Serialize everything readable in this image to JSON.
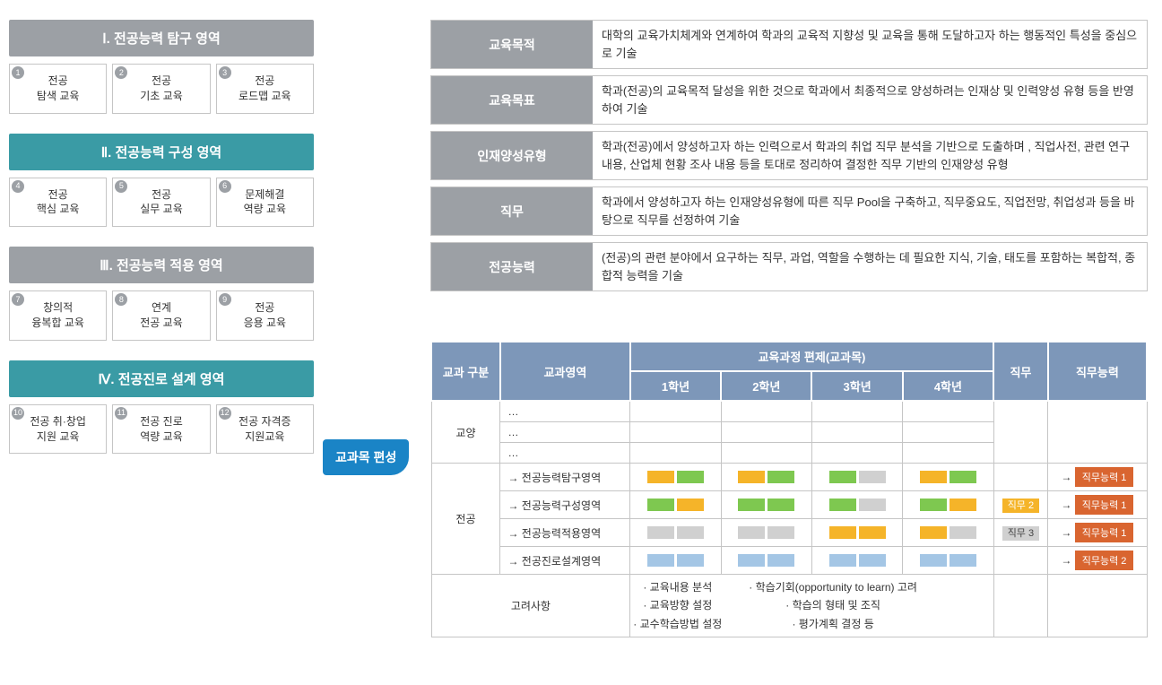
{
  "colors": {
    "header_gray": "#9ca0a5",
    "header_teal": "#3a9ba5",
    "table_header": "#7d97b9",
    "block_yellow": "#f5b429",
    "block_green": "#7ec850",
    "block_gray": "#d0d0d0",
    "block_blue": "#a4c6e5",
    "cap_orange": "#d96530",
    "tag_blue": "#1a84c6"
  },
  "sections": [
    {
      "title": "Ⅰ. 전공능력 탐구 영역",
      "teal": false,
      "cards": [
        {
          "n": "1",
          "t1": "전공",
          "t2": "탐색 교육"
        },
        {
          "n": "2",
          "t1": "전공",
          "t2": "기초 교육"
        },
        {
          "n": "3",
          "t1": "전공",
          "t2": "로드맵 교육"
        }
      ]
    },
    {
      "title": "Ⅱ. 전공능력 구성 영역",
      "teal": true,
      "cards": [
        {
          "n": "4",
          "t1": "전공",
          "t2": "핵심 교육"
        },
        {
          "n": "5",
          "t1": "전공",
          "t2": "실무 교육"
        },
        {
          "n": "6",
          "t1": "문제해결",
          "t2": "역량 교육"
        }
      ]
    },
    {
      "title": "Ⅲ. 전공능력 적용 영역",
      "teal": false,
      "cards": [
        {
          "n": "7",
          "t1": "창의적",
          "t2": "융복합 교육"
        },
        {
          "n": "8",
          "t1": "연계",
          "t2": "전공 교육"
        },
        {
          "n": "9",
          "t1": "전공",
          "t2": "응용 교육"
        }
      ]
    },
    {
      "title": "Ⅳ. 전공진로 설계 영역",
      "teal": true,
      "cards": [
        {
          "n": "10",
          "t1": "전공 취·창업",
          "t2": "지원 교육"
        },
        {
          "n": "11",
          "t1": "전공 진로",
          "t2": "역량 교육"
        },
        {
          "n": "12",
          "t1": "전공 자격증",
          "t2": "지원교육"
        }
      ]
    }
  ],
  "connector": "교과목 편성",
  "definitions": [
    {
      "label": "교육목적",
      "desc": "대학의 교육가치체계와 연계하여 학과의 교육적 지향성 및 교육을 통해 도달하고자 하는 행동적인 특성을 중심으로 기술"
    },
    {
      "label": "교육목표",
      "desc": "학과(전공)의 교육목적 달성을 위한 것으로 학과에서 최종적으로 양성하려는 인재상 및 인력양성 유형 등을 반영하여 기술"
    },
    {
      "label": "인재양성유형",
      "desc": "학과(전공)에서 양성하고자 하는 인력으로서 학과의 취업 직무 분석을 기반으로 도출하며 , 직업사전, 관련 연구 내용, 산업체 현황 조사 내용 등을 토대로 정리하여 결정한 직무 기반의 인재양성 유형"
    },
    {
      "label": "직무",
      "desc": "학과에서 양성하고자 하는 인재양성유형에 따른 직무 Pool을 구축하고, 직무중요도, 직업전망, 취업성과 등을 바탕으로 직무를 선정하여 기술"
    },
    {
      "label": "전공능력",
      "desc": "(전공)의 관련 분야에서 요구하는 직무, 과업, 역할을 수행하는 데 필요한 지식, 기술, 태도를 포함하는 복합적, 종합적 능력을 기술"
    }
  ],
  "table": {
    "headers": {
      "h1": "교과\n구분",
      "h2": "교과영역",
      "h3": "교육과정 편제(교과목)",
      "y1": "1학년",
      "y2": "2학년",
      "y3": "3학년",
      "y4": "4학년",
      "h4": "직무",
      "h5": "직무능력"
    },
    "liberal_label": "교양",
    "major_label": "전공",
    "ellipsis": "…",
    "areas": [
      "전공능력탐구영역",
      "전공능력구성영역",
      "전공능력적용영역",
      "전공진로설계영역"
    ],
    "blocks": [
      [
        [
          "y",
          "g"
        ],
        [
          "y",
          "g"
        ],
        [
          "g",
          "gr"
        ],
        [
          "y",
          "g"
        ]
      ],
      [
        [
          "g",
          "y"
        ],
        [
          "g",
          "g"
        ],
        [
          "g",
          "gr"
        ],
        [
          "g",
          "y"
        ]
      ],
      [
        [
          "gr",
          "gr"
        ],
        [
          "gr",
          "gr"
        ],
        [
          "y",
          "y"
        ],
        [
          "y",
          "gr"
        ]
      ],
      [
        [
          "b",
          "b"
        ],
        [
          "b",
          "b"
        ],
        [
          "b",
          "b"
        ],
        [
          "b",
          "b"
        ]
      ]
    ],
    "duties": [
      "",
      "직무 2",
      "직무 3",
      ""
    ],
    "capabilities": [
      "직무능력 1",
      "직무능력 1",
      "직무능력 1",
      "직무능력 2"
    ],
    "consider_label": "고려사항",
    "consider_items_left": [
      "· 교육내용 분석",
      "· 교육방향 설정",
      "· 교수학습방법 설정"
    ],
    "consider_items_right": [
      "· 학습기회(opportunity to learn) 고려",
      "· 학습의 형태 및 조직",
      "· 평가계획 결정 등"
    ]
  }
}
